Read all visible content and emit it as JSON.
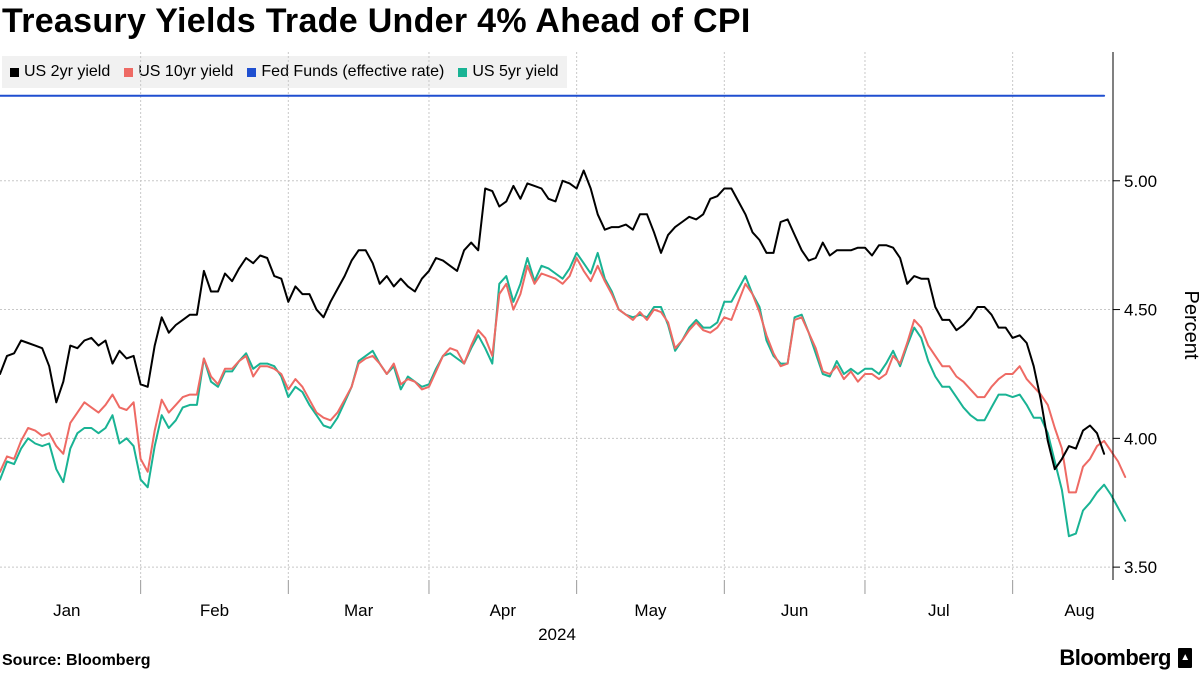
{
  "header": {
    "title": "Treasury Yields Trade Under 4% Ahead of CPI"
  },
  "footer": {
    "source": "Source: Bloomberg",
    "brand": "Bloomberg"
  },
  "colors": {
    "us2y": "#000000",
    "us10y": "#ee6a64",
    "fed": "#1f4fd0",
    "us5y": "#19b394",
    "grid": "#c8c8c8"
  },
  "chart_data": {
    "type": "line",
    "title": "Treasury Yields Trade Under 4% Ahead of CPI",
    "ylabel": "Percent",
    "xlabel": "2024",
    "ylim": [
      3.45,
      5.5
    ],
    "yticks": [
      3.5,
      4.0,
      4.5,
      5.0
    ],
    "ytick_labels": [
      "3.50",
      "4.00",
      "4.50",
      "5.00"
    ],
    "xlim": [
      1,
      156
    ],
    "month_boundaries": [
      21,
      42,
      62,
      83,
      104,
      124,
      145
    ],
    "month_labels": [
      {
        "label": "Jan",
        "pos": 10.5
      },
      {
        "label": "Feb",
        "pos": 31.5
      },
      {
        "label": "Mar",
        "pos": 52
      },
      {
        "label": "Apr",
        "pos": 72.5
      },
      {
        "label": "May",
        "pos": 93.5
      },
      {
        "label": "Jun",
        "pos": 114
      },
      {
        "label": "Jul",
        "pos": 134.5
      },
      {
        "label": "Aug",
        "pos": 154.5
      }
    ],
    "year_label": {
      "label": "2024",
      "pos": 79
    },
    "legend": [
      "US 2yr yield",
      "US 10yr yield",
      "Fed Funds (effective rate)",
      "US 5yr yield"
    ],
    "series": [
      {
        "name": "US 2yr yield",
        "key": "us2y",
        "values": [
          4.25,
          4.32,
          4.33,
          4.38,
          4.37,
          4.36,
          4.35,
          4.28,
          4.14,
          4.22,
          4.36,
          4.35,
          4.38,
          4.39,
          4.36,
          4.38,
          4.29,
          4.34,
          4.31,
          4.32,
          4.21,
          4.2,
          4.36,
          4.47,
          4.41,
          4.44,
          4.46,
          4.48,
          4.48,
          4.65,
          4.57,
          4.57,
          4.64,
          4.61,
          4.66,
          4.7,
          4.68,
          4.71,
          4.7,
          4.63,
          4.62,
          4.53,
          4.59,
          4.56,
          4.56,
          4.5,
          4.47,
          4.53,
          4.58,
          4.63,
          4.69,
          4.73,
          4.73,
          4.68,
          4.6,
          4.63,
          4.59,
          4.62,
          4.59,
          4.57,
          4.62,
          4.65,
          4.7,
          4.69,
          4.67,
          4.65,
          4.73,
          4.76,
          4.73,
          4.97,
          4.96,
          4.9,
          4.92,
          4.98,
          4.93,
          4.99,
          4.98,
          4.97,
          4.93,
          4.92,
          5.0,
          4.99,
          4.97,
          5.04,
          4.97,
          4.87,
          4.81,
          4.82,
          4.82,
          4.83,
          4.81,
          4.87,
          4.87,
          4.8,
          4.72,
          4.79,
          4.82,
          4.84,
          4.86,
          4.85,
          4.87,
          4.93,
          4.94,
          4.97,
          4.97,
          4.92,
          4.87,
          4.8,
          4.77,
          4.72,
          4.72,
          4.84,
          4.85,
          4.79,
          4.73,
          4.69,
          4.7,
          4.76,
          4.71,
          4.73,
          4.73,
          4.73,
          4.74,
          4.74,
          4.71,
          4.75,
          4.75,
          4.74,
          4.7,
          4.6,
          4.63,
          4.62,
          4.62,
          4.51,
          4.46,
          4.46,
          4.42,
          4.44,
          4.47,
          4.51,
          4.51,
          4.48,
          4.43,
          4.43,
          4.39,
          4.4,
          4.37,
          4.28,
          4.15,
          3.99,
          3.88,
          3.92,
          3.97,
          3.96,
          4.03,
          4.05,
          4.02,
          3.94
        ]
      },
      {
        "name": "US 10yr yield",
        "key": "us10y",
        "values": [
          3.87,
          3.93,
          3.92,
          3.99,
          4.04,
          4.03,
          4.01,
          4.02,
          3.97,
          3.94,
          4.06,
          4.1,
          4.14,
          4.12,
          4.1,
          4.13,
          4.17,
          4.12,
          4.11,
          4.14,
          3.92,
          3.87,
          4.03,
          4.15,
          4.1,
          4.13,
          4.16,
          4.17,
          4.17,
          4.31,
          4.24,
          4.21,
          4.27,
          4.27,
          4.3,
          4.32,
          4.24,
          4.28,
          4.28,
          4.27,
          4.25,
          4.19,
          4.23,
          4.2,
          4.15,
          4.1,
          4.08,
          4.07,
          4.1,
          4.15,
          4.2,
          4.29,
          4.31,
          4.32,
          4.29,
          4.25,
          4.29,
          4.21,
          4.23,
          4.22,
          4.19,
          4.2,
          4.26,
          4.32,
          4.35,
          4.34,
          4.29,
          4.36,
          4.42,
          4.39,
          4.32,
          4.56,
          4.6,
          4.5,
          4.56,
          4.67,
          4.6,
          4.64,
          4.63,
          4.62,
          4.6,
          4.63,
          4.7,
          4.65,
          4.61,
          4.67,
          4.61,
          4.56,
          4.5,
          4.48,
          4.46,
          4.49,
          4.46,
          4.5,
          4.49,
          4.45,
          4.35,
          4.38,
          4.42,
          4.45,
          4.42,
          4.41,
          4.43,
          4.47,
          4.46,
          4.53,
          4.6,
          4.56,
          4.49,
          4.4,
          4.33,
          4.28,
          4.29,
          4.46,
          4.47,
          4.41,
          4.35,
          4.26,
          4.25,
          4.28,
          4.23,
          4.26,
          4.22,
          4.25,
          4.25,
          4.23,
          4.25,
          4.32,
          4.29,
          4.37,
          4.46,
          4.43,
          4.36,
          4.32,
          4.28,
          4.28,
          4.24,
          4.22,
          4.19,
          4.16,
          4.16,
          4.2,
          4.23,
          4.25,
          4.25,
          4.28,
          4.23,
          4.2,
          4.17,
          4.13,
          4.04,
          3.96,
          3.79,
          3.79,
          3.89,
          3.92,
          3.97,
          3.99,
          3.95,
          3.91,
          3.85
        ]
      },
      {
        "name": "Fed Funds (effective rate)",
        "key": "fed",
        "values": [
          5.33,
          5.33,
          5.33,
          5.33,
          5.33,
          5.33,
          5.33,
          5.33,
          5.33,
          5.33,
          5.33,
          5.33,
          5.33,
          5.33,
          5.33,
          5.33,
          5.33,
          5.33,
          5.33,
          5.33,
          5.33,
          5.33,
          5.33,
          5.33,
          5.33,
          5.33,
          5.33,
          5.33,
          5.33,
          5.33,
          5.33,
          5.33,
          5.33,
          5.33,
          5.33,
          5.33,
          5.33,
          5.33,
          5.33,
          5.33,
          5.33,
          5.33,
          5.33,
          5.33,
          5.33,
          5.33,
          5.33,
          5.33,
          5.33,
          5.33,
          5.33,
          5.33,
          5.33,
          5.33,
          5.33,
          5.33,
          5.33,
          5.33,
          5.33,
          5.33,
          5.33,
          5.33,
          5.33,
          5.33,
          5.33,
          5.33,
          5.33,
          5.33,
          5.33,
          5.33,
          5.33,
          5.33,
          5.33,
          5.33,
          5.33,
          5.33,
          5.33,
          5.33,
          5.33,
          5.33,
          5.33,
          5.33,
          5.33,
          5.33,
          5.33,
          5.33,
          5.33,
          5.33,
          5.33,
          5.33,
          5.33,
          5.33,
          5.33,
          5.33,
          5.33,
          5.33,
          5.33,
          5.33,
          5.33,
          5.33,
          5.33,
          5.33,
          5.33,
          5.33,
          5.33,
          5.33,
          5.33,
          5.33,
          5.33,
          5.33,
          5.33,
          5.33,
          5.33,
          5.33,
          5.33,
          5.33,
          5.33,
          5.33,
          5.33,
          5.33,
          5.33,
          5.33,
          5.33,
          5.33,
          5.33,
          5.33,
          5.33,
          5.33,
          5.33,
          5.33,
          5.33,
          5.33,
          5.33,
          5.33,
          5.33,
          5.33,
          5.33,
          5.33,
          5.33,
          5.33,
          5.33,
          5.33,
          5.33,
          5.33,
          5.33,
          5.33,
          5.33,
          5.33,
          5.33,
          5.33,
          5.33,
          5.33,
          5.33,
          5.33,
          5.33,
          5.33,
          5.33,
          5.33
        ]
      },
      {
        "name": "US 5yr yield",
        "key": "us5y",
        "values": [
          3.84,
          3.91,
          3.9,
          3.96,
          4.0,
          3.98,
          3.97,
          3.98,
          3.88,
          3.83,
          3.96,
          4.02,
          4.04,
          4.04,
          4.02,
          4.04,
          4.09,
          3.98,
          4.0,
          3.97,
          3.84,
          3.81,
          3.97,
          4.09,
          4.04,
          4.07,
          4.12,
          4.13,
          4.13,
          4.31,
          4.22,
          4.2,
          4.26,
          4.26,
          4.3,
          4.33,
          4.27,
          4.29,
          4.29,
          4.28,
          4.24,
          4.16,
          4.2,
          4.18,
          4.13,
          4.09,
          4.05,
          4.04,
          4.08,
          4.14,
          4.2,
          4.3,
          4.32,
          4.34,
          4.29,
          4.25,
          4.28,
          4.19,
          4.24,
          4.22,
          4.2,
          4.21,
          4.27,
          4.32,
          4.33,
          4.31,
          4.29,
          4.35,
          4.4,
          4.35,
          4.29,
          4.6,
          4.63,
          4.53,
          4.6,
          4.7,
          4.61,
          4.67,
          4.66,
          4.64,
          4.62,
          4.66,
          4.72,
          4.68,
          4.64,
          4.72,
          4.62,
          4.57,
          4.5,
          4.48,
          4.47,
          4.48,
          4.47,
          4.51,
          4.51,
          4.44,
          4.34,
          4.38,
          4.43,
          4.46,
          4.43,
          4.43,
          4.45,
          4.53,
          4.53,
          4.58,
          4.63,
          4.56,
          4.51,
          4.38,
          4.32,
          4.29,
          4.29,
          4.47,
          4.48,
          4.41,
          4.33,
          4.25,
          4.24,
          4.3,
          4.25,
          4.27,
          4.25,
          4.27,
          4.27,
          4.25,
          4.29,
          4.34,
          4.28,
          4.36,
          4.43,
          4.39,
          4.3,
          4.24,
          4.2,
          4.2,
          4.16,
          4.12,
          4.09,
          4.07,
          4.07,
          4.12,
          4.17,
          4.17,
          4.16,
          4.17,
          4.13,
          4.08,
          4.08,
          4.02,
          3.91,
          3.8,
          3.62,
          3.63,
          3.72,
          3.75,
          3.79,
          3.82,
          3.78,
          3.73,
          3.68
        ]
      }
    ]
  }
}
